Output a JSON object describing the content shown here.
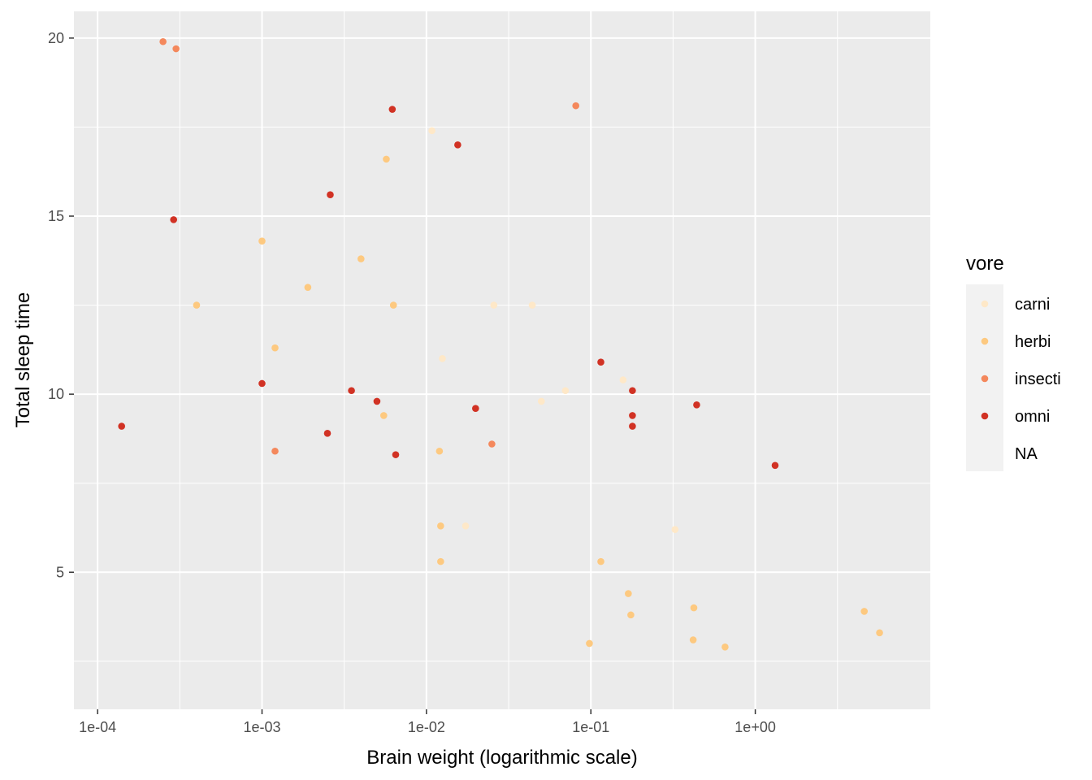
{
  "chart_data": {
    "type": "scatter",
    "xlabel": "Brain weight (logarithmic scale)",
    "ylabel": "Total sleep time",
    "x_scale": "log10",
    "xlim": [
      7.18e-05,
      11.6
    ],
    "ylim": [
      1.15,
      20.75
    ],
    "x_ticks": [
      {
        "value": 0.0001,
        "label": "1e-04"
      },
      {
        "value": 0.001,
        "label": "1e-03"
      },
      {
        "value": 0.01,
        "label": "1e-02"
      },
      {
        "value": 0.1,
        "label": "1e-01"
      },
      {
        "value": 1,
        "label": "1e+00"
      }
    ],
    "y_ticks": [
      {
        "value": 5,
        "label": "5"
      },
      {
        "value": 10,
        "label": "10"
      },
      {
        "value": 15,
        "label": "15"
      },
      {
        "value": 20,
        "label": "20"
      }
    ],
    "grid": true,
    "legend": {
      "title": "vore",
      "position": "right",
      "entries": [
        {
          "label": "carni",
          "color": "#fee8c8"
        },
        {
          "label": "herbi",
          "color": "#fdc980"
        },
        {
          "label": "insecti",
          "color": "#f4885c"
        },
        {
          "label": "omni",
          "color": "#d13224"
        },
        {
          "label": "NA",
          "color": null
        }
      ]
    },
    "series": [
      {
        "name": "carni",
        "color": "#fee8c8",
        "points": [
          [
            0.0108,
            17.4
          ],
          [
            0.0125,
            11.0
          ],
          [
            0.0257,
            12.5
          ],
          [
            0.044,
            12.5
          ],
          [
            0.0173,
            6.3
          ],
          [
            0.05,
            9.8
          ],
          [
            0.07,
            10.1
          ],
          [
            0.157,
            10.4
          ],
          [
            0.325,
            6.2
          ]
        ]
      },
      {
        "name": "herbi",
        "color": "#fdc980",
        "points": [
          [
            0.0004,
            12.5
          ],
          [
            0.001,
            14.3
          ],
          [
            0.0012,
            11.3
          ],
          [
            0.0019,
            13.0
          ],
          [
            0.004,
            13.8
          ],
          [
            0.0055,
            9.4
          ],
          [
            0.0057,
            16.6
          ],
          [
            0.0063,
            12.5
          ],
          [
            0.012,
            8.4
          ],
          [
            0.0122,
            6.3
          ],
          [
            0.0122,
            5.3
          ],
          [
            0.098,
            3.0
          ],
          [
            0.115,
            5.3
          ],
          [
            0.169,
            4.4
          ],
          [
            0.175,
            3.8
          ],
          [
            0.419,
            3.1
          ],
          [
            0.423,
            4.0
          ],
          [
            0.655,
            2.9
          ],
          [
            4.6,
            3.9
          ],
          [
            5.7,
            3.3
          ]
        ]
      },
      {
        "name": "insecti",
        "color": "#f4885c",
        "points": [
          [
            0.00025,
            19.9
          ],
          [
            0.0003,
            19.7
          ],
          [
            0.0012,
            8.4
          ],
          [
            0.025,
            8.6
          ],
          [
            0.081,
            18.1
          ]
        ]
      },
      {
        "name": "omni",
        "color": "#d13224",
        "points": [
          [
            0.00014,
            9.1
          ],
          [
            0.00029,
            14.9
          ],
          [
            0.001,
            10.3
          ],
          [
            0.0025,
            8.9
          ],
          [
            0.0026,
            15.6
          ],
          [
            0.0035,
            10.1
          ],
          [
            0.005,
            9.8
          ],
          [
            0.0062,
            18.0
          ],
          [
            0.0065,
            8.3
          ],
          [
            0.0155,
            17.0
          ],
          [
            0.0199,
            9.6
          ],
          [
            0.115,
            10.9
          ],
          [
            0.179,
            10.1
          ],
          [
            0.179,
            9.4
          ],
          [
            0.179,
            9.1
          ],
          [
            0.44,
            9.7
          ],
          [
            1.32,
            8.0
          ]
        ]
      }
    ]
  }
}
